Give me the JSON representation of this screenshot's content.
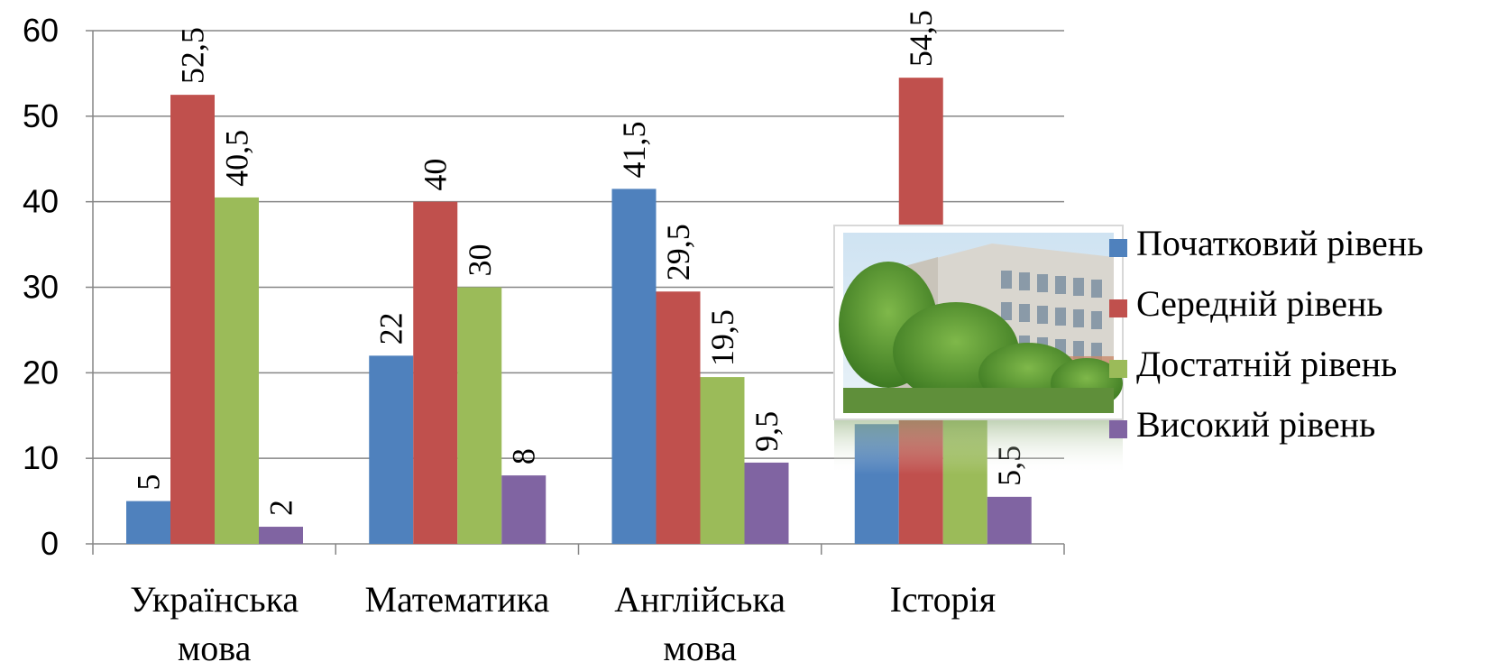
{
  "chart_data": {
    "type": "bar",
    "categories": [
      [
        "Українська",
        "мова"
      ],
      [
        "Математика"
      ],
      [
        "Англійська",
        "мова"
      ],
      [
        "Історія"
      ]
    ],
    "series": [
      {
        "name": "Початковий рівень",
        "color": "#4F81BD",
        "values": [
          5,
          22,
          41.5,
          14
        ]
      },
      {
        "name": "Середній рівень",
        "color": "#C0504D",
        "values": [
          52.5,
          40,
          29.5,
          54.5
        ]
      },
      {
        "name": "Достатній рівень",
        "color": "#9BBB59",
        "values": [
          40.5,
          30,
          19.5,
          28
        ]
      },
      {
        "name": "Високий рівень",
        "color": "#8064A2",
        "values": [
          2,
          8,
          9.5,
          5.5
        ]
      }
    ],
    "data_labels": [
      [
        "5",
        "52,5",
        "40,5",
        "2"
      ],
      [
        "22",
        "40",
        "30",
        "8"
      ],
      [
        "41,5",
        "29,5",
        "19,5",
        "9,5"
      ],
      [
        "",
        "54,5",
        "",
        "5,5"
      ]
    ],
    "ylim": [
      0,
      60
    ],
    "yticks": [
      0,
      10,
      20,
      30,
      40,
      50,
      60
    ],
    "grid": true,
    "legend_position": "right"
  },
  "photo": {
    "description_icon": "school-building-photo"
  }
}
